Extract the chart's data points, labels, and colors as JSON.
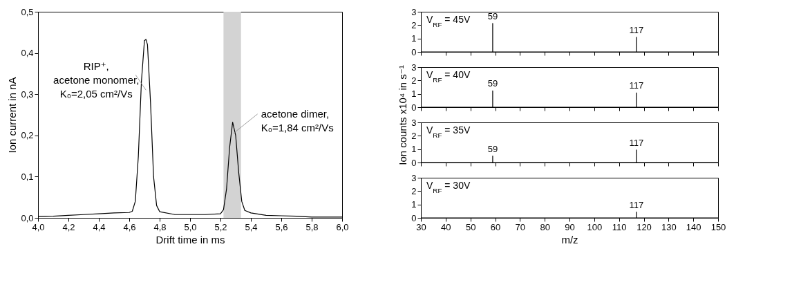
{
  "chart_data": [
    {
      "type": "line",
      "xlabel": "Drift time in ms",
      "ylabel": "Ion current in nA",
      "x": [
        4.0,
        4.1,
        4.2,
        4.3,
        4.4,
        4.5,
        4.6,
        4.62,
        4.64,
        4.66,
        4.68,
        4.7,
        4.71,
        4.72,
        4.74,
        4.76,
        4.78,
        4.8,
        4.9,
        5.0,
        5.1,
        5.2,
        5.22,
        5.24,
        5.26,
        5.28,
        5.3,
        5.32,
        5.34,
        5.36,
        5.4,
        5.5,
        5.6,
        5.7,
        5.8,
        5.9,
        6.0
      ],
      "series": [
        {
          "color": "#000000",
          "values": [
            0.003,
            0.004,
            0.006,
            0.008,
            0.01,
            0.012,
            0.013,
            0.016,
            0.04,
            0.15,
            0.33,
            0.43,
            0.433,
            0.42,
            0.28,
            0.1,
            0.03,
            0.015,
            0.008,
            0.008,
            0.008,
            0.01,
            0.02,
            0.07,
            0.17,
            0.232,
            0.2,
            0.11,
            0.04,
            0.018,
            0.012,
            0.006,
            0.005,
            0.004,
            0.002,
            0.002,
            0.002
          ]
        }
      ],
      "xlim": [
        4,
        6
      ],
      "xticks": [
        {
          "value": 4,
          "label": "4,0"
        },
        {
          "value": 4.2,
          "label": "4,2"
        },
        {
          "value": 4.4,
          "label": "4,4"
        },
        {
          "value": 4.6,
          "label": "4,6"
        },
        {
          "value": 4.8,
          "label": "4,8"
        },
        {
          "value": 5,
          "label": "5,0"
        },
        {
          "value": 5.2,
          "label": "5,2"
        },
        {
          "value": 5.4,
          "label": "5,4"
        },
        {
          "value": 5.6,
          "label": "5,6"
        },
        {
          "value": 5.8,
          "label": "5,8"
        },
        {
          "value": 6,
          "label": "6,0"
        }
      ],
      "ylim": [
        0,
        0.5
      ],
      "yticks": [
        {
          "value": 0,
          "label": "0,0"
        },
        {
          "value": 0.1,
          "label": "0,1"
        },
        {
          "value": 0.2,
          "label": "0,2"
        },
        {
          "value": 0.3,
          "label": "0,3"
        },
        {
          "value": 0.4,
          "label": "0,4"
        },
        {
          "value": 0.5,
          "label": "0,5"
        }
      ],
      "bands": [
        {
          "axis": "x",
          "from": 5.22,
          "to": 5.335,
          "color": "#d3d3d3"
        }
      ],
      "annotations": [
        {
          "text": "RIP⁺,\nacetone monomer,\nK₀=2,05 cm²/Vs",
          "x": 4.71,
          "y": 0.31
        },
        {
          "text": "acetone dimer,\nK₀=1,84 cm²/Vs",
          "x": 5.285,
          "y": 0.205
        }
      ]
    },
    {
      "type": "line",
      "x": [
        30,
        59,
        59,
        59,
        117,
        117,
        117,
        150
      ],
      "series": [
        {
          "color": "#000000",
          "values": [
            0,
            0,
            2.13,
            0,
            0,
            1.1,
            0,
            0
          ]
        }
      ],
      "xlim": [
        30,
        150
      ],
      "xticks": [
        30,
        40,
        50,
        60,
        70,
        80,
        90,
        100,
        110,
        120,
        130,
        140,
        150
      ],
      "ylim": [
        0,
        3
      ],
      "yticks": [
        0,
        1,
        2,
        3
      ],
      "tick_labels": "y",
      "annotations": [
        "V$_{RF}$ = 45V",
        {
          "text": "59",
          "x": 59,
          "y": 2.13
        },
        {
          "text": "117",
          "x": 117,
          "y": 1.1
        }
      ]
    },
    {
      "type": "line",
      "x": [
        30,
        59,
        59,
        59,
        117,
        117,
        117,
        150
      ],
      "ylabel": "Ion counts x10⁴ in s⁻¹",
      "series": [
        {
          "color": "#000000",
          "values": [
            0,
            0,
            1.22,
            0,
            0,
            1.07,
            0,
            0
          ]
        }
      ],
      "xlim": [
        30,
        150
      ],
      "xticks": [
        30,
        40,
        50,
        60,
        70,
        80,
        90,
        100,
        110,
        120,
        130,
        140,
        150
      ],
      "ylim": [
        0,
        3
      ],
      "yticks": [
        0,
        1,
        2,
        3
      ],
      "tick_labels": "y",
      "annotations": [
        "V$_{RF}$ = 40V",
        {
          "text": "59",
          "x": 59,
          "y": 1.22
        },
        {
          "text": "117",
          "x": 117,
          "y": 1.07
        }
      ]
    },
    {
      "type": "line",
      "x": [
        30,
        59,
        59,
        59,
        117,
        117,
        117,
        150
      ],
      "series": [
        {
          "color": "#000000",
          "values": [
            0,
            0,
            0.49,
            0,
            0,
            0.94,
            0,
            0
          ]
        }
      ],
      "xlim": [
        30,
        150
      ],
      "xticks": [
        30,
        40,
        50,
        60,
        70,
        80,
        90,
        100,
        110,
        120,
        130,
        140,
        150
      ],
      "ylim": [
        0,
        3
      ],
      "yticks": [
        0,
        1,
        2,
        3
      ],
      "tick_labels": "y",
      "annotations": [
        "V$_{RF}$ = 35V",
        {
          "text": "59",
          "x": 59,
          "y": 0.49
        },
        {
          "text": "117",
          "x": 117,
          "y": 0.94
        }
      ]
    },
    {
      "type": "line",
      "x": [
        30,
        117,
        117,
        117,
        150
      ],
      "xlabel": "m/z",
      "series": [
        {
          "color": "#000000",
          "values": [
            0,
            0,
            0.43,
            0,
            0
          ]
        }
      ],
      "xlim": [
        30,
        150
      ],
      "xticks": [
        30,
        40,
        50,
        60,
        70,
        80,
        90,
        100,
        110,
        120,
        130,
        140,
        150
      ],
      "ylim": [
        0,
        3
      ],
      "yticks": [
        0,
        1,
        2,
        3
      ],
      "annotations": [
        "V$_{RF}$ = 30V",
        {
          "text": "117",
          "x": 117,
          "y": 0.43
        }
      ]
    }
  ]
}
